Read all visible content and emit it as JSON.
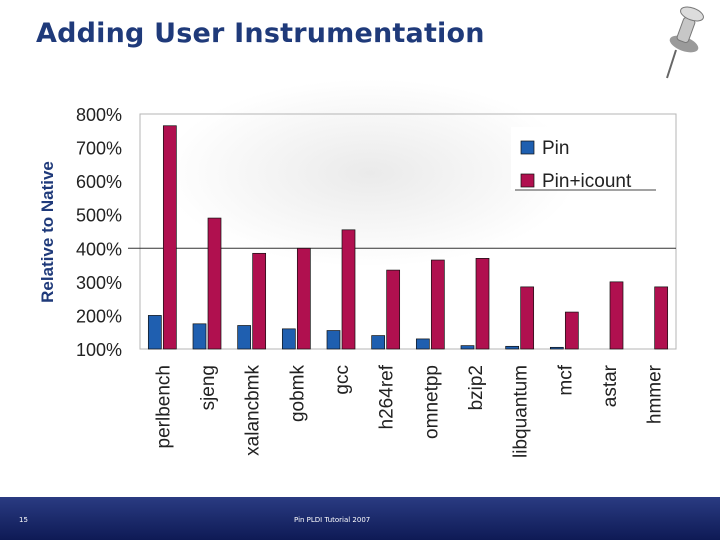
{
  "slide": {
    "title": "Adding User Instrumentation",
    "page_number": "15",
    "footer": "Pin PLDI Tutorial 2007"
  },
  "chart_data": {
    "type": "bar",
    "title": "",
    "xlabel": "",
    "ylabel": "Relative to Native",
    "categories": [
      "perlbench",
      "sjeng",
      "xalancbmk",
      "gobmk",
      "gcc",
      "h264ref",
      "omnetpp",
      "bzip2",
      "libquantum",
      "mcf",
      "astar",
      "hmmer"
    ],
    "series": [
      {
        "name": "Pin",
        "color": "#1f5fb0",
        "values": [
          200,
          175,
          170,
          160,
          155,
          140,
          130,
          110,
          108,
          105,
          null,
          null
        ]
      },
      {
        "name": "Pin+icount",
        "color": "#b0104f",
        "values": [
          765,
          490,
          385,
          400,
          455,
          335,
          365,
          370,
          285,
          210,
          300,
          285
        ]
      }
    ],
    "ylim": [
      100,
      800
    ],
    "yticks": [
      100,
      200,
      300,
      400,
      500,
      600,
      700,
      800
    ],
    "ytick_labels": [
      "100%",
      "200%",
      "300%",
      "400%",
      "500%",
      "600%",
      "700%",
      "800%"
    ],
    "reference_line": 400,
    "legend_position": "top-right"
  }
}
